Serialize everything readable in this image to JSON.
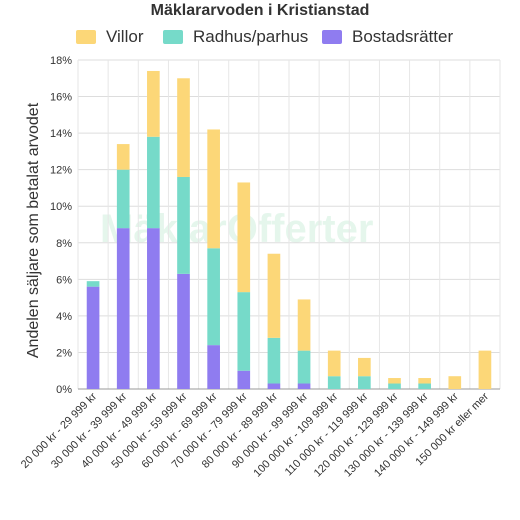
{
  "chart_data": {
    "type": "bar",
    "stacked": true,
    "title": "Mäklararvoden i Kristianstad",
    "xlabel": "",
    "ylabel": "Andelen säljare som betalat arvodet",
    "ylim": [
      0,
      18
    ],
    "yticks": [
      "0%",
      "2%",
      "4%",
      "6%",
      "8%",
      "10%",
      "12%",
      "14%",
      "16%",
      "18%"
    ],
    "grid": true,
    "legend_position": "top",
    "watermark": "MäklarOfferter",
    "categories": [
      "20 000 kr - 29 999 kr",
      "30 000 kr - 39 999 kr",
      "40 000 kr - 49 999 kr",
      "50 000 kr - 59 999 kr",
      "60 000 kr - 69 999 kr",
      "70 000 kr - 79 999 kr",
      "80 000 kr - 89 999 kr",
      "90 000 kr - 99 999 kr",
      "100 000 kr - 109 999 kr",
      "110 000 kr - 119 999 kr",
      "120 000 kr - 129 999 kr",
      "130 000 kr - 139 999 kr",
      "140 000 kr - 149 999 kr",
      "150 000 kr eller mer"
    ],
    "series": [
      {
        "name": "Bostadsrätter",
        "color": "#8f7cf0",
        "values": [
          5.6,
          8.8,
          8.8,
          6.3,
          2.4,
          1.0,
          0.3,
          0.3,
          0,
          0,
          0,
          0,
          0,
          0
        ]
      },
      {
        "name": "Radhus/parhus",
        "color": "#76dac9",
        "values": [
          0.3,
          3.2,
          5.0,
          5.3,
          5.3,
          4.3,
          2.5,
          1.8,
          0.7,
          0.7,
          0.3,
          0.3,
          0,
          0
        ]
      },
      {
        "name": "Villor",
        "color": "#fcd778",
        "values": [
          0,
          1.4,
          3.6,
          5.4,
          6.5,
          6.0,
          4.6,
          2.8,
          1.4,
          1.0,
          0.3,
          0.3,
          0.7,
          2.1
        ]
      }
    ],
    "legend_order": [
      "Villor",
      "Radhus/parhus",
      "Bostadsrätter"
    ]
  }
}
